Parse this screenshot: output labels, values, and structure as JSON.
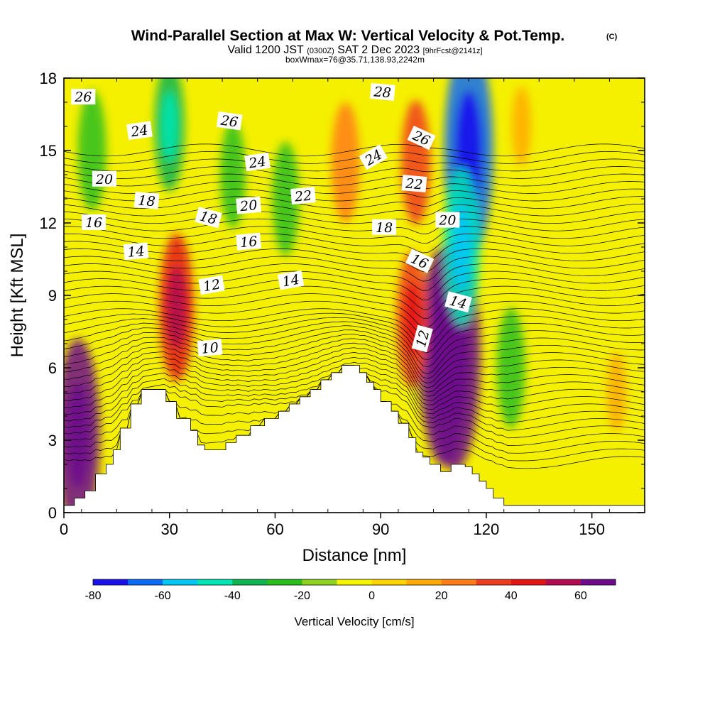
{
  "chart_data": {
    "type": "heatmap",
    "title": {
      "main": "Wind-Parallel Section at Max W: Vertical Velocity & Pot.Temp.",
      "copyright": "(C)",
      "valid_prefix": "Valid 1200 JST",
      "valid_utc": "(0300Z)",
      "valid_date": "SAT 2 Dec 2023",
      "forecast_info": "[9hrFcst@2141z]",
      "boxwmax": "boxWmax=76@35.71,138.93,2242m"
    },
    "xlabel": "Distance [nm]",
    "ylabel": "Height [Kft MSL]",
    "xlim": [
      0,
      165
    ],
    "ylim": [
      0,
      18
    ],
    "x_ticks": [
      "0",
      "30",
      "60",
      "90",
      "120",
      "150"
    ],
    "y_ticks": [
      "0",
      "3",
      "6",
      "9",
      "12",
      "15",
      "18"
    ],
    "colorbar": {
      "label": "Vertical Velocity [cm/s]",
      "range": [
        -80,
        70
      ],
      "ticks": [
        "-80",
        "-60",
        "-40",
        "-20",
        "0",
        "20",
        "40",
        "60"
      ],
      "colors": [
        "#1a10ee",
        "#0a6cf5",
        "#00c8f5",
        "#00e6b4",
        "#10b450",
        "#28be1e",
        "#8cd21e",
        "#f5f500",
        "#ffd200",
        "#ffaa00",
        "#ff7d14",
        "#f03c1e",
        "#e61414",
        "#b40a50",
        "#6e0a8c"
      ]
    },
    "vertical_velocity_features": [
      {
        "x": 4,
        "y": 3.2,
        "w": 60
      },
      {
        "x": 32,
        "y": 8.5,
        "w": 40
      },
      {
        "x": 80,
        "y": 14.5,
        "w": 28
      },
      {
        "x": 100,
        "y": 14.5,
        "w": 30
      },
      {
        "x": 108,
        "y": 6.5,
        "w": 72
      },
      {
        "x": 111,
        "y": 6.5,
        "w": 76
      },
      {
        "x": 99,
        "y": 8,
        "w": 35
      },
      {
        "x": 8,
        "y": 15,
        "w": -28
      },
      {
        "x": 30,
        "y": 16,
        "w": -32
      },
      {
        "x": 48,
        "y": 14,
        "w": -22
      },
      {
        "x": 63,
        "y": 13,
        "w": -25
      },
      {
        "x": 115,
        "y": 15,
        "w": -70
      },
      {
        "x": 113,
        "y": 11,
        "w": -45
      },
      {
        "x": 127,
        "y": 6,
        "w": -28
      },
      {
        "x": 130,
        "y": 16,
        "w": 10
      },
      {
        "x": 157,
        "y": 5,
        "w": 10
      }
    ],
    "theta_contours": [
      {
        "level": 10,
        "label": "10"
      },
      {
        "level": 12,
        "label": "12"
      },
      {
        "level": 14,
        "label": "14"
      },
      {
        "level": 16,
        "label": "16"
      },
      {
        "level": 18,
        "label": "18"
      },
      {
        "level": 20,
        "label": "20"
      },
      {
        "level": 22,
        "label": "22"
      },
      {
        "level": 24,
        "label": "24"
      },
      {
        "level": 26,
        "label": "26"
      },
      {
        "level": 28,
        "label": "28"
      }
    ],
    "contour_labels": [
      {
        "text": "26",
        "x": 5.5,
        "y": 17.2,
        "angle": 0
      },
      {
        "text": "24",
        "x": 21.5,
        "y": 15.8,
        "angle": -8
      },
      {
        "text": "26",
        "x": 47,
        "y": 16.2,
        "angle": 8
      },
      {
        "text": "24",
        "x": 55,
        "y": 14.5,
        "angle": -8
      },
      {
        "text": "20",
        "x": 11.5,
        "y": 13.8,
        "angle": 0
      },
      {
        "text": "18",
        "x": 23.5,
        "y": 12.9,
        "angle": 5
      },
      {
        "text": "16",
        "x": 8.5,
        "y": 12.0,
        "angle": 0
      },
      {
        "text": "18",
        "x": 41,
        "y": 12.2,
        "angle": 15
      },
      {
        "text": "20",
        "x": 52.5,
        "y": 12.7,
        "angle": -5
      },
      {
        "text": "22",
        "x": 68,
        "y": 13.1,
        "angle": -5
      },
      {
        "text": "16",
        "x": 52.5,
        "y": 11.2,
        "angle": -5
      },
      {
        "text": "14",
        "x": 20.5,
        "y": 10.8,
        "angle": -5
      },
      {
        "text": "12",
        "x": 42,
        "y": 9.4,
        "angle": -10
      },
      {
        "text": "14",
        "x": 64.5,
        "y": 9.6,
        "angle": -10
      },
      {
        "text": "28",
        "x": 90.5,
        "y": 17.4,
        "angle": 5
      },
      {
        "text": "24",
        "x": 88,
        "y": 14.7,
        "angle": -30
      },
      {
        "text": "26",
        "x": 101.5,
        "y": 15.5,
        "angle": 25
      },
      {
        "text": "22",
        "x": 99.5,
        "y": 13.6,
        "angle": 5
      },
      {
        "text": "18",
        "x": 91,
        "y": 11.8,
        "angle": 0
      },
      {
        "text": "20",
        "x": 109,
        "y": 12.1,
        "angle": 0
      },
      {
        "text": "16",
        "x": 101,
        "y": 10.4,
        "angle": 25
      },
      {
        "text": "14",
        "x": 112,
        "y": 8.7,
        "angle": 15
      },
      {
        "text": "12",
        "x": 102,
        "y": 7.2,
        "angle": -75
      },
      {
        "text": "10",
        "x": 41.5,
        "y": 6.8,
        "angle": -5
      }
    ],
    "terrain": [
      [
        0,
        0.3
      ],
      [
        3,
        0.3
      ],
      [
        3,
        0.6
      ],
      [
        6,
        0.6
      ],
      [
        6,
        0.9
      ],
      [
        9,
        0.9
      ],
      [
        9,
        1.6
      ],
      [
        12,
        1.6
      ],
      [
        12,
        2.0
      ],
      [
        14,
        2.0
      ],
      [
        14,
        2.6
      ],
      [
        16,
        2.6
      ],
      [
        16,
        3.5
      ],
      [
        19,
        3.5
      ],
      [
        19,
        4.5
      ],
      [
        22,
        4.5
      ],
      [
        22,
        5.1
      ],
      [
        29,
        5.1
      ],
      [
        29,
        4.6
      ],
      [
        32,
        4.6
      ],
      [
        32,
        3.9
      ],
      [
        36,
        3.9
      ],
      [
        36,
        3.4
      ],
      [
        38,
        3.4
      ],
      [
        38,
        2.8
      ],
      [
        40,
        2.8
      ],
      [
        40,
        2.6
      ],
      [
        46,
        2.6
      ],
      [
        46,
        2.9
      ],
      [
        49,
        2.9
      ],
      [
        49,
        3.2
      ],
      [
        53,
        3.2
      ],
      [
        53,
        3.6
      ],
      [
        57,
        3.6
      ],
      [
        57,
        3.9
      ],
      [
        61,
        3.9
      ],
      [
        61,
        4.2
      ],
      [
        64,
        4.2
      ],
      [
        64,
        4.5
      ],
      [
        67,
        4.5
      ],
      [
        67,
        4.8
      ],
      [
        70,
        4.8
      ],
      [
        70,
        5.1
      ],
      [
        73,
        5.1
      ],
      [
        73,
        5.5
      ],
      [
        76,
        5.5
      ],
      [
        76,
        5.8
      ],
      [
        79,
        5.8
      ],
      [
        79,
        6.1
      ],
      [
        84,
        6.1
      ],
      [
        84,
        5.8
      ],
      [
        86,
        5.8
      ],
      [
        86,
        5.4
      ],
      [
        88,
        5.4
      ],
      [
        88,
        5.1
      ],
      [
        90,
        5.1
      ],
      [
        90,
        4.6
      ],
      [
        93,
        4.6
      ],
      [
        93,
        4.2
      ],
      [
        95,
        4.2
      ],
      [
        95,
        3.7
      ],
      [
        98,
        3.7
      ],
      [
        98,
        3.1
      ],
      [
        100,
        3.1
      ],
      [
        100,
        2.5
      ],
      [
        102,
        2.5
      ],
      [
        102,
        2.3
      ],
      [
        104,
        2.3
      ],
      [
        104,
        2.0
      ],
      [
        107,
        2.0
      ],
      [
        107,
        1.7
      ],
      [
        110,
        1.7
      ],
      [
        110,
        2.0
      ],
      [
        114,
        2.0
      ],
      [
        114,
        1.9
      ],
      [
        116,
        1.9
      ],
      [
        116,
        1.6
      ],
      [
        118,
        1.6
      ],
      [
        118,
        1.3
      ],
      [
        120,
        1.3
      ],
      [
        120,
        1.0
      ],
      [
        122,
        1.0
      ],
      [
        122,
        0.6
      ],
      [
        125,
        0.6
      ],
      [
        125,
        0.3
      ],
      [
        165,
        0.3
      ]
    ]
  }
}
